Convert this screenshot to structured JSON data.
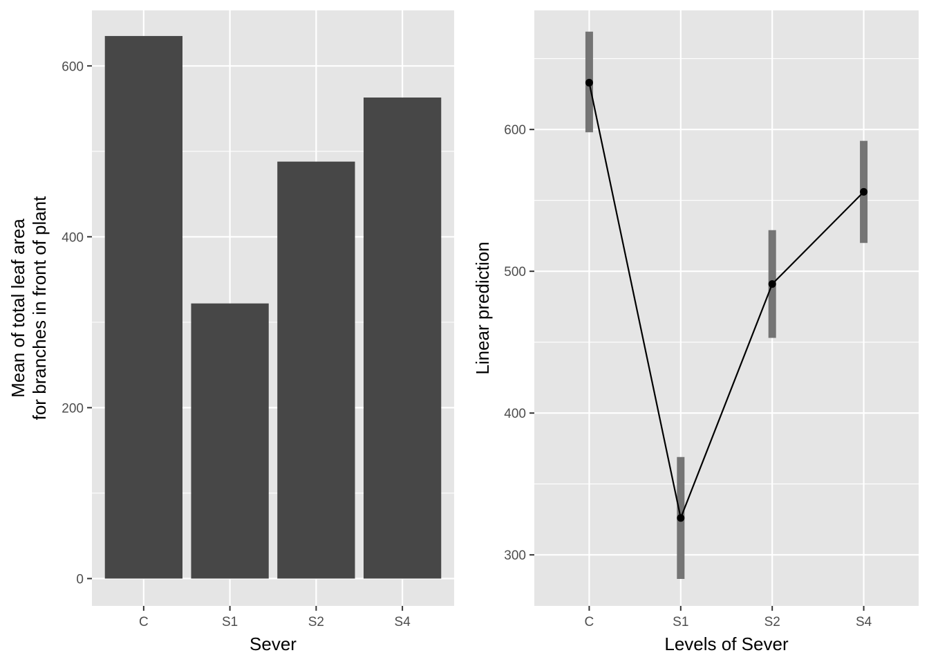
{
  "chart_data": [
    {
      "type": "bar",
      "xlabel": "Sever",
      "ylabel_lines": [
        "Mean of total leaf area",
        "for branches in front of plant"
      ],
      "categories": [
        "C",
        "S1",
        "S2",
        "S4"
      ],
      "values": [
        635,
        322,
        488,
        563
      ],
      "ylim": [
        -32,
        665
      ],
      "yticks": [
        0,
        200,
        400,
        600
      ],
      "ytick_labels": [
        "0",
        "200",
        "400",
        "600"
      ],
      "grid": true,
      "colors": {
        "panel": "#e5e5e5",
        "grid": "#ffffff",
        "bar": "#474747"
      }
    },
    {
      "type": "line",
      "xlabel": "Levels of Sever",
      "ylabel": "Linear prediction",
      "categories": [
        "C",
        "S1",
        "S2",
        "S4"
      ],
      "values": [
        633,
        326,
        491,
        556
      ],
      "ci_lower": [
        598,
        283,
        453,
        520
      ],
      "ci_upper": [
        669,
        369,
        529,
        592
      ],
      "ylim": [
        264,
        684
      ],
      "yticks": [
        300,
        400,
        500,
        600
      ],
      "ytick_labels": [
        "300",
        "400",
        "500",
        "600"
      ],
      "grid": true,
      "colors": {
        "panel": "#e5e5e5",
        "grid": "#ffffff",
        "line": "#000000",
        "errorbar": "#6e6e6e"
      }
    }
  ]
}
